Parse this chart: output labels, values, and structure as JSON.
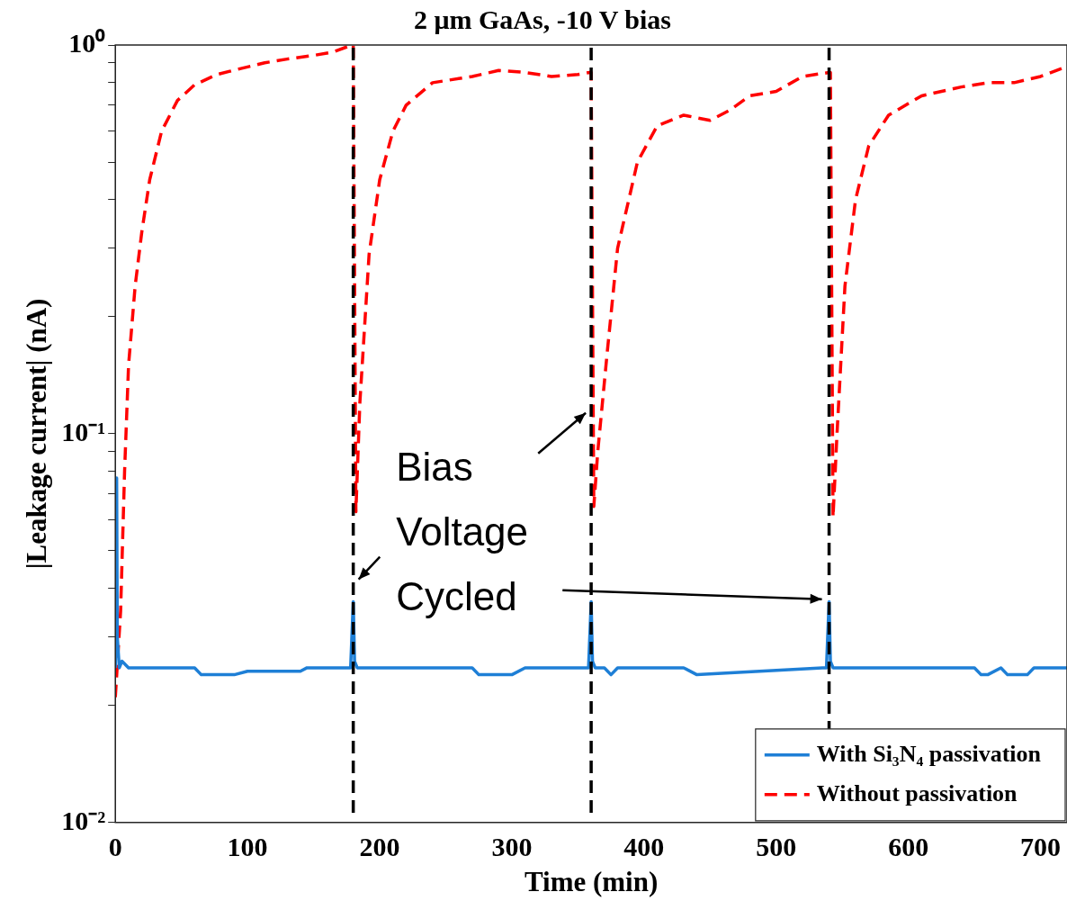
{
  "chart_data": {
    "type": "line",
    "title": "2 μm GaAs, -10 V bias",
    "xlabel": "Time (min)",
    "ylabel": "|Leakage current| (nA)",
    "xlim": [
      0,
      720
    ],
    "xticks": [
      0,
      100,
      200,
      300,
      400,
      500,
      600,
      700
    ],
    "ylim": [
      0.01,
      1
    ],
    "log": "y",
    "grid": false,
    "marker": "none",
    "legend": "bottom right",
    "yticks": [
      {
        "value": 0.01,
        "label": "10⁻²"
      },
      {
        "value": 0.02,
        "label": null
      },
      {
        "value": 0.03,
        "label": null
      },
      {
        "value": 0.04,
        "label": null
      },
      {
        "value": 0.05,
        "label": null
      },
      {
        "value": 0.06,
        "label": null
      },
      {
        "value": 0.07,
        "label": null
      },
      {
        "value": 0.08,
        "label": null
      },
      {
        "value": 0.09,
        "label": null
      },
      {
        "value": 0.1,
        "label": "10⁻¹"
      },
      {
        "value": 0.2,
        "label": null
      },
      {
        "value": 0.3,
        "label": null
      },
      {
        "value": 0.4,
        "label": null
      },
      {
        "value": 0.5,
        "label": null
      },
      {
        "value": 0.6,
        "label": null
      },
      {
        "value": 0.7,
        "label": null
      },
      {
        "value": 0.8,
        "label": null
      },
      {
        "value": 0.9,
        "label": null
      },
      {
        "value": 1,
        "label": "10⁰"
      }
    ],
    "series": [
      {
        "name": "With Si₃N₄ passivation",
        "color": "#1e7fd6",
        "line_style": "solid",
        "x": [
          0,
          1,
          1.5,
          3,
          5,
          10,
          60,
          65,
          90,
          100,
          110,
          140,
          145,
          178,
          180,
          181,
          183,
          270,
          275,
          300,
          310,
          355,
          358,
          360,
          361,
          363,
          370,
          375,
          380,
          430,
          440,
          535,
          538,
          540,
          541,
          543,
          650,
          655,
          660,
          670,
          675,
          690,
          695,
          720
        ],
        "values": [
          0.025,
          0.077,
          0.03,
          0.025,
          0.026,
          0.025,
          0.025,
          0.024,
          0.024,
          0.0245,
          0.0245,
          0.0245,
          0.025,
          0.025,
          0.037,
          0.026,
          0.025,
          0.025,
          0.024,
          0.024,
          0.025,
          0.025,
          0.025,
          0.037,
          0.026,
          0.025,
          0.025,
          0.024,
          0.025,
          0.025,
          0.024,
          0.025,
          0.025,
          0.037,
          0.026,
          0.025,
          0.025,
          0.024,
          0.024,
          0.025,
          0.024,
          0.024,
          0.025,
          0.025
        ]
      },
      {
        "name": "Without passivation",
        "color": "#ff0000",
        "line_style": "dashed",
        "x": [
          0,
          4,
          7,
          10,
          15,
          20,
          26,
          35,
          47,
          60,
          77,
          95,
          113,
          130,
          150,
          165,
          179,
          180,
          182,
          185,
          192,
          200,
          210,
          220,
          240,
          270,
          290,
          310,
          330,
          350,
          359,
          360,
          362,
          365,
          372,
          380,
          395,
          410,
          430,
          450,
          465,
          480,
          500,
          520,
          540,
          541,
          543,
          546,
          552,
          560,
          570,
          585,
          610,
          640,
          660,
          680,
          700,
          720
        ],
        "values": [
          0.021,
          0.035,
          0.08,
          0.15,
          0.24,
          0.33,
          0.45,
          0.6,
          0.72,
          0.79,
          0.84,
          0.87,
          0.9,
          0.92,
          0.94,
          0.96,
          1,
          1,
          0.063,
          0.12,
          0.29,
          0.45,
          0.6,
          0.7,
          0.8,
          0.83,
          0.86,
          0.85,
          0.83,
          0.84,
          0.85,
          0.85,
          0.065,
          0.09,
          0.16,
          0.3,
          0.5,
          0.62,
          0.66,
          0.64,
          0.68,
          0.74,
          0.76,
          0.83,
          0.85,
          0.85,
          0.061,
          0.1,
          0.24,
          0.4,
          0.55,
          0.66,
          0.74,
          0.78,
          0.8,
          0.8,
          0.83,
          0.88
        ]
      }
    ],
    "ref_lines": [
      {
        "axis": "x",
        "value": 180,
        "color": "#000000",
        "line_style": "dashed"
      },
      {
        "axis": "x",
        "value": 360,
        "color": "#000000",
        "line_style": "dashed"
      },
      {
        "axis": "x",
        "value": 540,
        "color": "#000000",
        "line_style": "dashed"
      }
    ],
    "annotations": [
      "Bias Voltage Cycled"
    ]
  }
}
